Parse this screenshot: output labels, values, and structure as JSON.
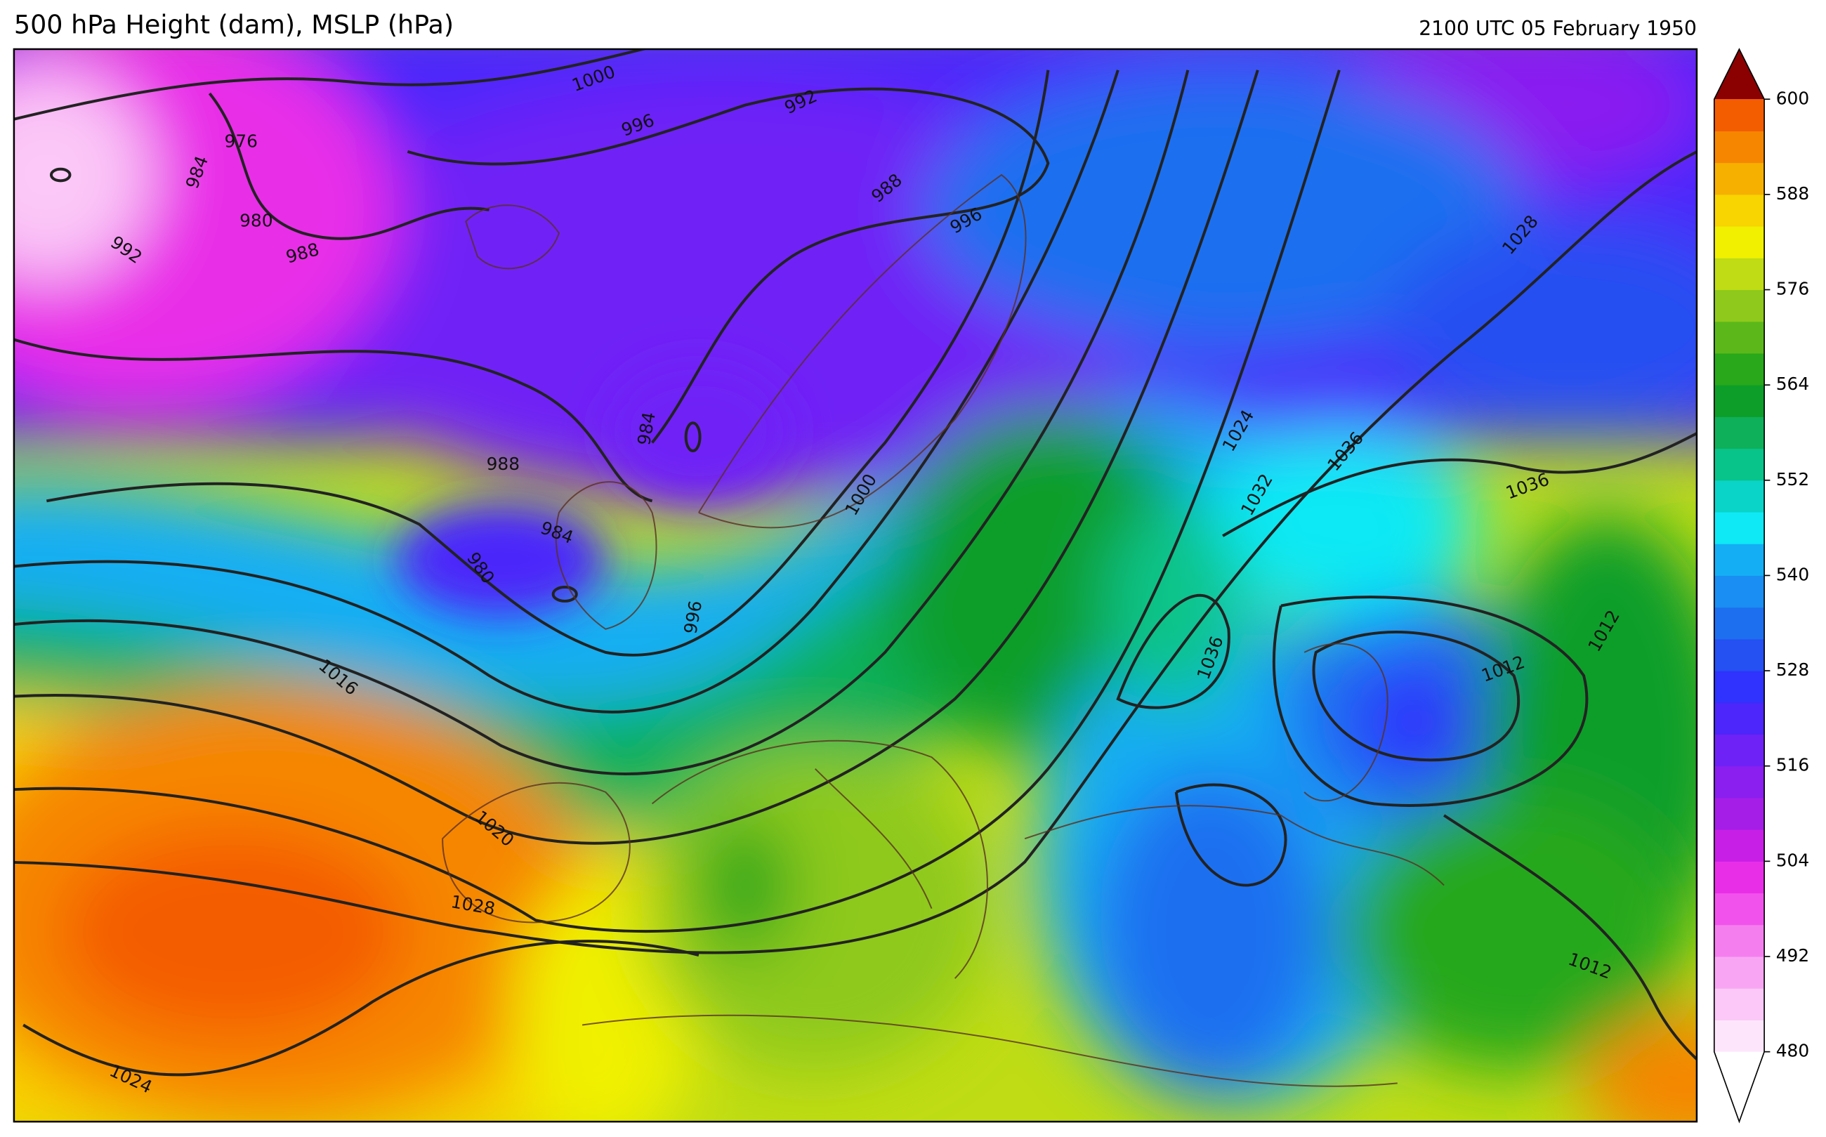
{
  "header": {
    "title": "500 hPa Height (dam), MSLP (hPa)",
    "valid_time": "2100 UTC 05 February 1950"
  },
  "colorbar": {
    "lim": [
      480,
      600
    ],
    "ticks": [
      480,
      492,
      504,
      516,
      528,
      540,
      552,
      564,
      576,
      588,
      600
    ],
    "colors": [
      "#fde6fb",
      "#fbc8f7",
      "#f8a6f3",
      "#f57eef",
      "#f252ec",
      "#e92ee8",
      "#c81fe6",
      "#a51ee8",
      "#8a1ff0",
      "#6f22f6",
      "#4c26fb",
      "#2f33fd",
      "#2550f2",
      "#1e6ff0",
      "#1a8ef2",
      "#14aef4",
      "#0ee9f5",
      "#0ad4c8",
      "#08c48a",
      "#0fb05a",
      "#0d9e2a",
      "#28a81a",
      "#5cb81a",
      "#8ec91c",
      "#bfdc14",
      "#f0f000",
      "#f8d400",
      "#f6b000",
      "#f68600",
      "#f45c00"
    ],
    "under_color": "#ffffff",
    "over_color": "#8b0000"
  },
  "contour_labels": [
    "1000",
    "996",
    "992",
    "976",
    "984",
    "980",
    "992",
    "988",
    "988",
    "996",
    "988",
    "984",
    "984",
    "980",
    "996",
    "1000",
    "1016",
    "1020",
    "1028",
    "1024",
    "1024",
    "1032",
    "1036",
    "1036",
    "1036",
    "1028",
    "1012",
    "1012",
    "1012"
  ]
}
